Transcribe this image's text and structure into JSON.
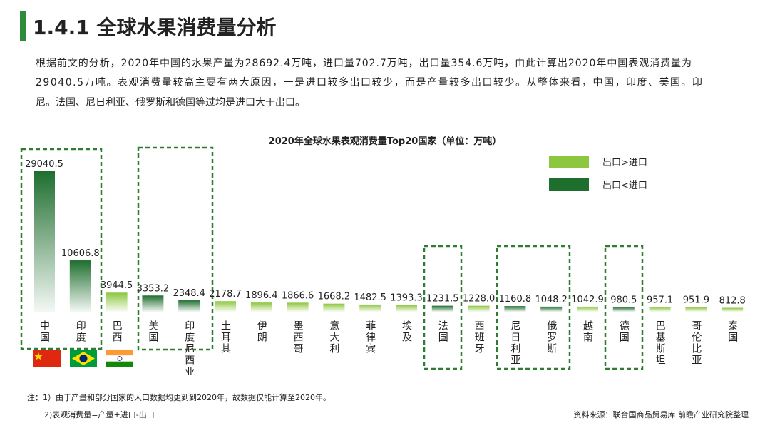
{
  "header": {
    "title": "1.4.1 全球水果消费量分析"
  },
  "paragraph": [
    "根据前文的分析，2020年中国的水果产量为28692.4万吨，进口量702.7万吨，出口量354.6万吨，由此计算出2020年中国表观消费量为",
    "29040.5万吨。表观消费量较高主要有两大原因，一是进口较多出口较少，而是产量较多出口较少。从整体来看，中国，印度、美国。印",
    "尼。法国、尼日利亚、俄罗斯和德国等过均是进口大于出口。"
  ],
  "chart_data": {
    "type": "bar",
    "title": "2020年全球水果表观消费量Top20国家（单位：万吨）",
    "categories": [
      "中国",
      "印度",
      "巴西",
      "美国",
      "印度尼西亚",
      "土耳其",
      "伊朗",
      "墨西哥",
      "意大利",
      "菲律宾",
      "埃及",
      "法国",
      "西班牙",
      "尼日利亚",
      "俄罗斯",
      "越南",
      "德国",
      "巴基斯坦",
      "哥伦比亚",
      "泰国"
    ],
    "series": [
      {
        "name": "出口>进口",
        "color": "#8dc63f",
        "values": [
          null,
          null,
          3944.5,
          null,
          null,
          2178.7,
          1896.4,
          1866.6,
          1668.2,
          1482.5,
          1393.3,
          null,
          1228.0,
          null,
          null,
          1042.9,
          null,
          957.1,
          951.9,
          812.8
        ],
        "value_labels": [
          null,
          null,
          "3944.5",
          null,
          null,
          "2178.7",
          "1896.4",
          "1866.6",
          "1668.2",
          "1482.5",
          "1393.3",
          null,
          "1228.0",
          null,
          null,
          "1042.9",
          null,
          "957.1",
          "951.9",
          "812.8"
        ]
      },
      {
        "name": "出口<进口",
        "color": "#1e6e2e",
        "values": [
          29040.5,
          10606.8,
          null,
          3353.2,
          2348.4,
          null,
          null,
          null,
          null,
          null,
          null,
          1231.5,
          null,
          1160.8,
          1048.2,
          null,
          980.5,
          null,
          null,
          null
        ],
        "value_labels": [
          "29040.5",
          "10606.8",
          null,
          "3353.2",
          "2348.4",
          null,
          null,
          null,
          null,
          null,
          null,
          "1231.5",
          null,
          "1160.8",
          "1048.2",
          null,
          "980.5",
          null,
          null,
          null
        ]
      }
    ]
  },
  "notes": [
    "注：1）由于产量和部分国家的人口数据均更到到2020年，故数据仅能计算至2020年。",
    "2)表观消费量=产量+进口-出口"
  ],
  "source": "资料来源：联合国商品贸易库  前瞻产业研究院整理"
}
